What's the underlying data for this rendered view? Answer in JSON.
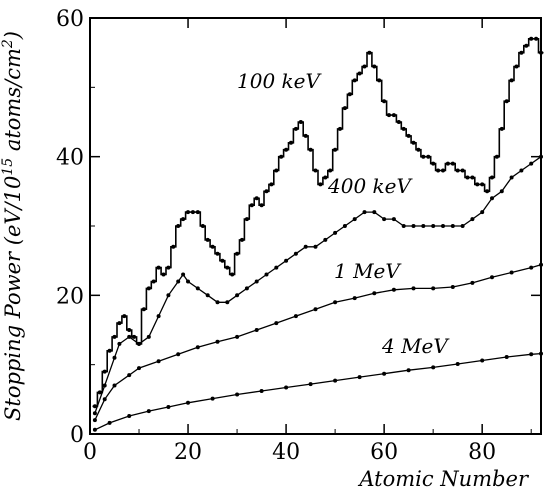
{
  "chart_data": {
    "type": "line",
    "xlabel": "Atomic Number",
    "ylabel": "Stopping Power (eV/10^15 atoms/cm^2)",
    "xlim": [
      0,
      92
    ],
    "ylim": [
      0,
      60
    ],
    "x_ticks": [
      0,
      20,
      40,
      60,
      80
    ],
    "y_ticks": [
      0,
      20,
      40,
      60
    ],
    "grid": false,
    "series": [
      {
        "name": "100 keV",
        "style": "step",
        "points": [
          [
            1,
            4
          ],
          [
            2,
            6
          ],
          [
            3,
            9
          ],
          [
            4,
            12
          ],
          [
            5,
            14
          ],
          [
            6,
            16
          ],
          [
            7,
            17
          ],
          [
            8,
            15
          ],
          [
            9,
            14
          ],
          [
            10,
            13
          ],
          [
            11,
            18
          ],
          [
            12,
            21
          ],
          [
            13,
            22
          ],
          [
            14,
            24
          ],
          [
            15,
            23
          ],
          [
            16,
            24
          ],
          [
            17,
            27
          ],
          [
            18,
            30
          ],
          [
            19,
            31
          ],
          [
            20,
            32
          ],
          [
            21,
            32
          ],
          [
            22,
            32
          ],
          [
            23,
            30
          ],
          [
            24,
            28
          ],
          [
            25,
            27
          ],
          [
            26,
            26
          ],
          [
            27,
            25
          ],
          [
            28,
            24
          ],
          [
            29,
            23
          ],
          [
            30,
            26
          ],
          [
            31,
            28
          ],
          [
            32,
            31
          ],
          [
            33,
            33
          ],
          [
            34,
            34
          ],
          [
            35,
            33
          ],
          [
            36,
            35
          ],
          [
            37,
            36
          ],
          [
            38,
            38
          ],
          [
            39,
            40
          ],
          [
            40,
            41
          ],
          [
            41,
            42
          ],
          [
            42,
            44
          ],
          [
            43,
            45
          ],
          [
            44,
            43
          ],
          [
            45,
            41
          ],
          [
            46,
            38
          ],
          [
            47,
            36
          ],
          [
            48,
            37
          ],
          [
            49,
            38
          ],
          [
            50,
            41
          ],
          [
            51,
            44
          ],
          [
            52,
            47
          ],
          [
            53,
            49
          ],
          [
            54,
            51
          ],
          [
            55,
            52
          ],
          [
            56,
            53
          ],
          [
            57,
            55
          ],
          [
            58,
            53
          ],
          [
            59,
            51
          ],
          [
            60,
            48
          ],
          [
            61,
            46
          ],
          [
            62,
            46
          ],
          [
            63,
            45
          ],
          [
            64,
            44
          ],
          [
            65,
            43
          ],
          [
            66,
            42
          ],
          [
            67,
            41
          ],
          [
            68,
            40
          ],
          [
            69,
            40
          ],
          [
            70,
            39
          ],
          [
            71,
            38
          ],
          [
            72,
            38
          ],
          [
            73,
            39
          ],
          [
            74,
            39
          ],
          [
            75,
            38
          ],
          [
            76,
            38
          ],
          [
            77,
            37
          ],
          [
            78,
            37
          ],
          [
            79,
            36
          ],
          [
            80,
            36
          ],
          [
            81,
            35
          ],
          [
            82,
            37
          ],
          [
            83,
            40
          ],
          [
            84,
            44
          ],
          [
            85,
            48
          ],
          [
            86,
            51
          ],
          [
            87,
            53
          ],
          [
            88,
            55
          ],
          [
            89,
            56
          ],
          [
            90,
            57
          ],
          [
            91,
            57
          ],
          [
            92,
            55
          ]
        ]
      },
      {
        "name": "400 keV",
        "style": "dotted",
        "points": [
          [
            1,
            3
          ],
          [
            3,
            7
          ],
          [
            5,
            11
          ],
          [
            6,
            13
          ],
          [
            8,
            14
          ],
          [
            10,
            13
          ],
          [
            12,
            14
          ],
          [
            14,
            17
          ],
          [
            16,
            20
          ],
          [
            18,
            22
          ],
          [
            19,
            23
          ],
          [
            20,
            22
          ],
          [
            22,
            21
          ],
          [
            24,
            20
          ],
          [
            26,
            19
          ],
          [
            28,
            19
          ],
          [
            30,
            20
          ],
          [
            32,
            21
          ],
          [
            34,
            22
          ],
          [
            36,
            23
          ],
          [
            38,
            24
          ],
          [
            40,
            25
          ],
          [
            42,
            26
          ],
          [
            44,
            27
          ],
          [
            46,
            27
          ],
          [
            48,
            28
          ],
          [
            50,
            29
          ],
          [
            52,
            30
          ],
          [
            54,
            31
          ],
          [
            56,
            32
          ],
          [
            58,
            32
          ],
          [
            60,
            31
          ],
          [
            62,
            31
          ],
          [
            64,
            30
          ],
          [
            66,
            30
          ],
          [
            68,
            30
          ],
          [
            70,
            30
          ],
          [
            72,
            30
          ],
          [
            74,
            30
          ],
          [
            76,
            30
          ],
          [
            78,
            31
          ],
          [
            80,
            32
          ],
          [
            82,
            34
          ],
          [
            84,
            35
          ],
          [
            86,
            37
          ],
          [
            88,
            38
          ],
          [
            90,
            39
          ],
          [
            92,
            40
          ]
        ]
      },
      {
        "name": "1 MeV",
        "style": "dotted",
        "points": [
          [
            1,
            2
          ],
          [
            3,
            5
          ],
          [
            5,
            7
          ],
          [
            8,
            8.5
          ],
          [
            10,
            9.5
          ],
          [
            14,
            10.5
          ],
          [
            18,
            11.5
          ],
          [
            22,
            12.5
          ],
          [
            26,
            13.3
          ],
          [
            30,
            14
          ],
          [
            34,
            15
          ],
          [
            38,
            16
          ],
          [
            42,
            17
          ],
          [
            46,
            18
          ],
          [
            50,
            19
          ],
          [
            54,
            19.6
          ],
          [
            58,
            20.3
          ],
          [
            62,
            20.8
          ],
          [
            66,
            21
          ],
          [
            70,
            21
          ],
          [
            74,
            21.2
          ],
          [
            78,
            21.8
          ],
          [
            82,
            22.6
          ],
          [
            86,
            23.3
          ],
          [
            90,
            24
          ],
          [
            92,
            24.4
          ]
        ]
      },
      {
        "name": "4 MeV",
        "style": "dotted",
        "points": [
          [
            1,
            0.6
          ],
          [
            4,
            1.6
          ],
          [
            8,
            2.6
          ],
          [
            12,
            3.3
          ],
          [
            16,
            3.9
          ],
          [
            20,
            4.5
          ],
          [
            25,
            5.1
          ],
          [
            30,
            5.7
          ],
          [
            35,
            6.2
          ],
          [
            40,
            6.7
          ],
          [
            45,
            7.2
          ],
          [
            50,
            7.7
          ],
          [
            55,
            8.2
          ],
          [
            60,
            8.7
          ],
          [
            65,
            9.2
          ],
          [
            70,
            9.6
          ],
          [
            75,
            10.1
          ],
          [
            80,
            10.6
          ],
          [
            85,
            11.1
          ],
          [
            90,
            11.5
          ],
          [
            92,
            11.6
          ]
        ]
      }
    ]
  }
}
